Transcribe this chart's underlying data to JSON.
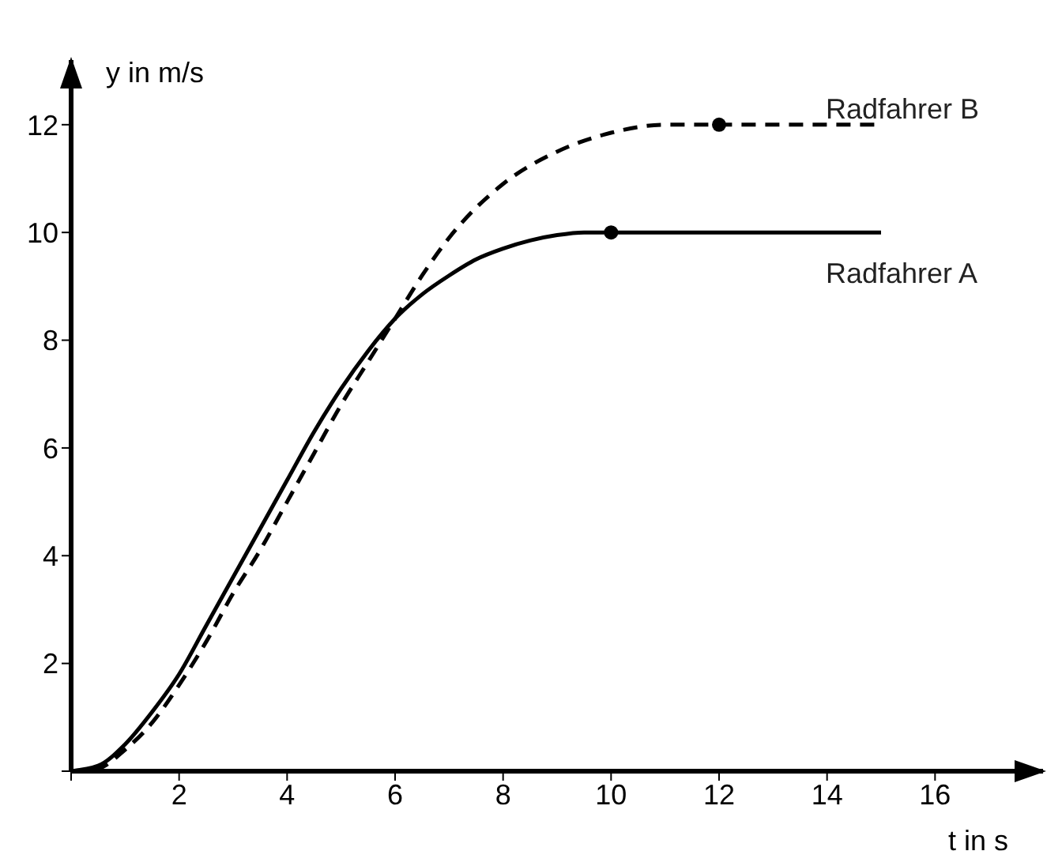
{
  "chart_data": {
    "type": "line",
    "xlabel": "t in s",
    "ylabel": "y in m/s",
    "xlim": [
      0,
      18
    ],
    "ylim": [
      0,
      13.2
    ],
    "xticks": [
      {
        "value": 0,
        "label": null
      },
      2,
      4,
      6,
      8,
      10,
      12,
      14,
      16
    ],
    "yticks": [
      {
        "value": 0,
        "label": null
      },
      2,
      4,
      6,
      8,
      10,
      12
    ],
    "marker": "none",
    "series": [
      {
        "name": "Radfahrer A",
        "color": "#000000",
        "line_style": "solid",
        "x": [
          0,
          0.5,
          1,
          1.5,
          2,
          2.5,
          3,
          3.5,
          4,
          4.5,
          5,
          5.5,
          6,
          6.5,
          7,
          7.5,
          8,
          8.5,
          9,
          9.5,
          10,
          15
        ],
        "values": [
          0,
          0.1,
          0.5,
          1.1,
          1.8,
          2.7,
          3.6,
          4.5,
          5.4,
          6.3,
          7.1,
          7.8,
          8.4,
          8.85,
          9.2,
          9.5,
          9.7,
          9.85,
          9.95,
          10,
          10,
          10
        ]
      },
      {
        "name": "Radfahrer B",
        "color": "#000000",
        "line_style": "dashed",
        "x": [
          0,
          0.5,
          1,
          1.5,
          2,
          2.5,
          3,
          3.5,
          4,
          4.5,
          5,
          5.5,
          6,
          6.5,
          7,
          8,
          9,
          10,
          11,
          12,
          15
        ],
        "values": [
          0,
          0.05,
          0.4,
          0.9,
          1.6,
          2.4,
          3.3,
          4.1,
          5.0,
          5.9,
          6.8,
          7.6,
          8.4,
          9.2,
          9.9,
          10.9,
          11.5,
          11.85,
          12,
          12,
          12
        ]
      },
      {
        "type": "scatter",
        "color": "#000000",
        "marker": "circle",
        "x": [
          10,
          12
        ],
        "values": [
          10,
          12
        ]
      }
    ]
  }
}
